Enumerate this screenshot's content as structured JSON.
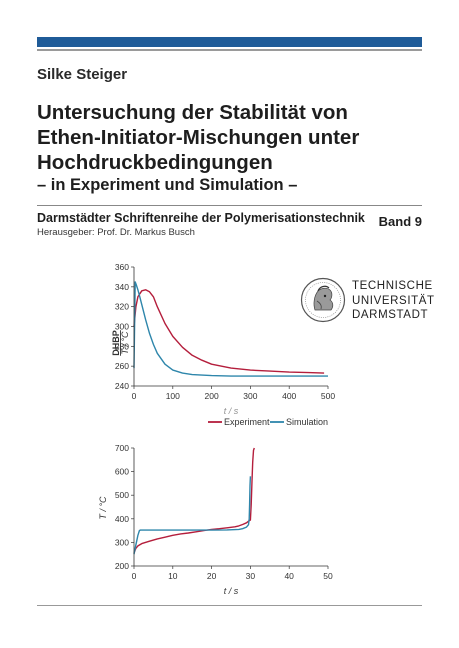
{
  "book": {
    "author": "Silke Steiger",
    "title_lines": [
      "Untersuchung der Stabilität von",
      "Ethen-Initiator-Mischungen unter",
      "Hochdruckbedingungen"
    ],
    "subtitle": "– in Experiment und Simulation –",
    "series_name": "Darmstädter Schriftenreihe der Polymerisationstechnik",
    "series_editor": "Herausgeber: Prof. Dr. Markus Busch",
    "band": "Band 9"
  },
  "logo": {
    "icon": "athena-seal-icon",
    "lines": [
      "TECHNISCHE",
      "UNIVERSITÄT",
      "DARMSTADT"
    ]
  },
  "colors": {
    "band_blue": "#1f5b98",
    "experiment": "#b41e3c",
    "simulation": "#2e86ab"
  },
  "chart_data": [
    {
      "type": "line",
      "title": "",
      "side_label": "DHBP",
      "ylabel": "T / °C",
      "xlabel": "t / s",
      "xlim": [
        0,
        500
      ],
      "ylim": [
        240,
        360
      ],
      "x_ticks": [
        "0",
        "100",
        "200",
        "300",
        "400",
        "500"
      ],
      "y_ticks": [
        "240",
        "260",
        "280",
        "300",
        "320",
        "340",
        "360"
      ],
      "legend_position": "bottom",
      "series": [
        {
          "name": "Experiment",
          "x": [
            0,
            5,
            10,
            15,
            20,
            30,
            40,
            50,
            60,
            80,
            100,
            125,
            150,
            175,
            200,
            250,
            300,
            350,
            400,
            450,
            490
          ],
          "y": [
            300,
            320,
            330,
            333,
            336,
            337,
            335,
            330,
            320,
            303,
            290,
            279,
            271,
            266,
            262,
            258,
            256,
            255,
            254,
            253.5,
            253
          ]
        },
        {
          "name": "Simulation",
          "x": [
            0,
            3,
            6,
            10,
            15,
            20,
            30,
            40,
            50,
            60,
            80,
            100,
            125,
            150,
            175,
            200,
            250,
            300,
            400,
            500
          ],
          "y": [
            258,
            345,
            342,
            337,
            330,
            322,
            307,
            293,
            282,
            273,
            262,
            256,
            253,
            251.5,
            251,
            250.5,
            250,
            250,
            250,
            250
          ]
        }
      ]
    },
    {
      "type": "line",
      "title": "",
      "ylabel": "T / °C",
      "xlabel": "t / s",
      "xlim": [
        0,
        50
      ],
      "ylim": [
        200,
        700
      ],
      "x_ticks": [
        "0",
        "10",
        "20",
        "30",
        "40",
        "50"
      ],
      "y_ticks": [
        "200",
        "300",
        "400",
        "500",
        "600",
        "700"
      ],
      "series": [
        {
          "name": "Experiment",
          "x": [
            0,
            0.5,
            1,
            2,
            4,
            6,
            8,
            10,
            12,
            14,
            16,
            18,
            20,
            22,
            24,
            26,
            27,
            28,
            29,
            29.5,
            30,
            30.2,
            30.4,
            30.6,
            30.8,
            31
          ],
          "y": [
            255,
            275,
            285,
            295,
            305,
            315,
            322,
            330,
            336,
            340,
            345,
            350,
            355,
            358,
            362,
            366,
            370,
            376,
            383,
            390,
            395,
            460,
            560,
            640,
            690,
            700
          ]
        },
        {
          "name": "Simulation",
          "x": [
            0,
            0.5,
            1,
            1.4,
            1.6,
            2,
            5,
            10,
            15,
            20,
            24,
            27,
            28,
            29,
            29.5,
            29.7,
            29.8,
            29.9,
            30
          ],
          "y": [
            250,
            290,
            330,
            350,
            352,
            352,
            352,
            352,
            352,
            352,
            353,
            355,
            358,
            365,
            375,
            400,
            460,
            540,
            580
          ]
        }
      ]
    }
  ]
}
